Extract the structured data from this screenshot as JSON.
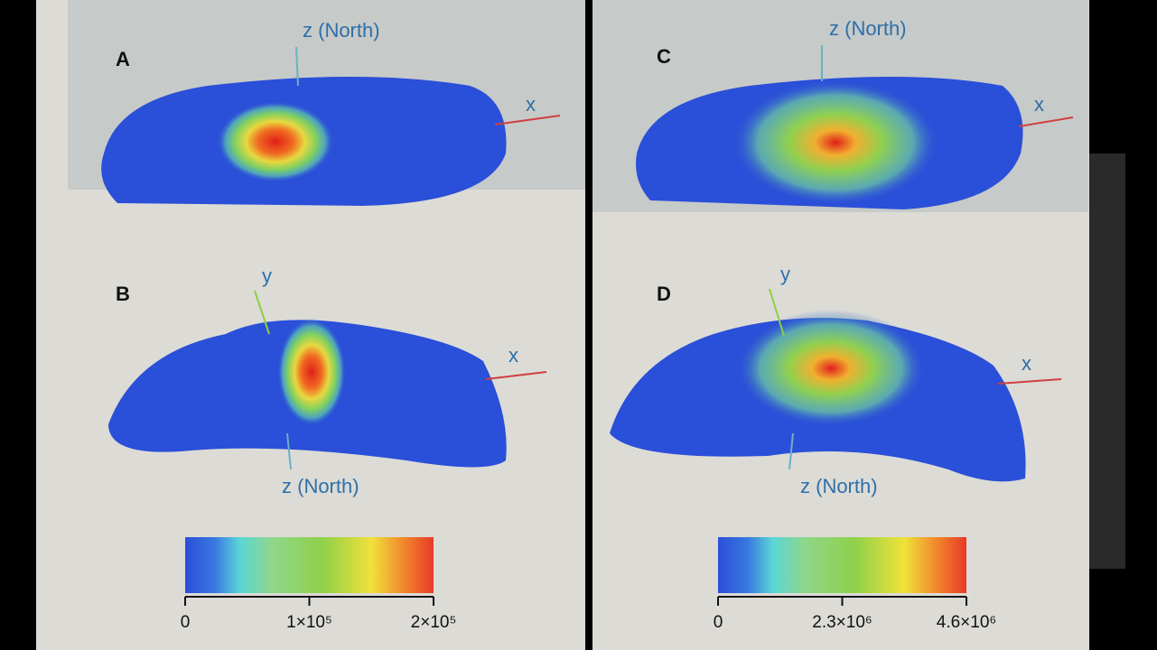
{
  "panels": [
    {
      "letter": "A",
      "labels": [
        "z (North)",
        "x"
      ]
    },
    {
      "letter": "B",
      "labels": [
        "y",
        "x",
        "z (North)"
      ]
    },
    {
      "letter": "C",
      "labels": [
        "z (North)",
        "x"
      ]
    },
    {
      "letter": "D",
      "labels": [
        "y",
        "x",
        "z (North)"
      ]
    }
  ],
  "colorbars": [
    {
      "lim": [
        0,
        200000
      ],
      "ticks": [
        0,
        {
          "value": 100000,
          "label": "1×10⁵"
        },
        {
          "value": 200000,
          "label": "2×10⁵"
        }
      ]
    },
    {
      "lim": [
        0,
        4600000
      ],
      "ticks": [
        0,
        {
          "value": 2300000,
          "label": "2.3×10⁶"
        },
        {
          "value": 4600000,
          "label": "4.6×10⁶"
        }
      ]
    }
  ]
}
